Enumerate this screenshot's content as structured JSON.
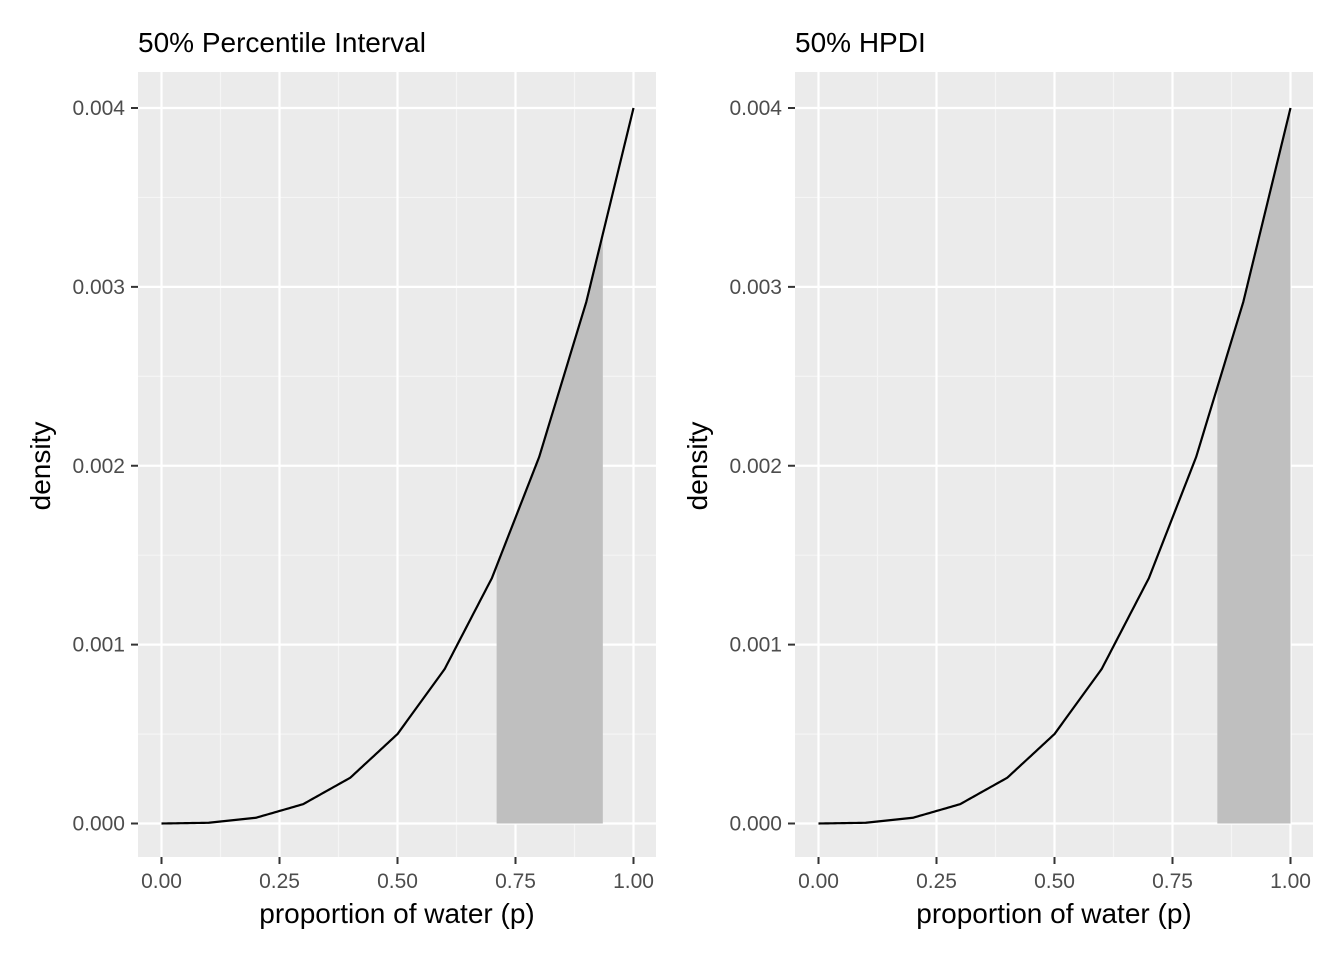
{
  "panels": [
    {
      "title": "50% Percentile Interval",
      "interval_type": "percentile"
    },
    {
      "title": "50% HPDI",
      "interval_type": "hpdi"
    }
  ],
  "chart_data": [
    {
      "type": "area",
      "title": "50% Percentile Interval",
      "xlabel": "proportion of water (p)",
      "ylabel": "density",
      "xlim": [
        0,
        1
      ],
      "ylim": [
        0,
        0.004
      ],
      "x_ticks": [
        0,
        0.25,
        0.5,
        0.75,
        1.0
      ],
      "x_tick_labels": [
        "0.00",
        "0.25",
        "0.50",
        "0.75",
        "1.00"
      ],
      "y_ticks": [
        0,
        0.001,
        0.002,
        0.003,
        0.004
      ],
      "y_tick_labels": [
        "0.000",
        "0.001",
        "0.002",
        "0.003",
        "0.004"
      ],
      "grid": true,
      "series": [
        {
          "x": [
            0,
            0.1,
            0.2,
            0.3,
            0.4,
            0.5,
            0.6,
            0.7,
            0.8,
            0.9,
            1.0
          ],
          "values": [
            0,
            4e-06,
            3.2e-05,
            0.000108,
            0.000256,
            0.0005,
            0.000864,
            0.001372,
            0.002048,
            0.002916,
            0.004
          ]
        }
      ],
      "shaded_interval": [
        0.71,
        0.935
      ]
    },
    {
      "type": "area",
      "title": "50% HPDI",
      "xlabel": "proportion of water (p)",
      "ylabel": "density",
      "xlim": [
        0,
        1
      ],
      "ylim": [
        0,
        0.004
      ],
      "x_ticks": [
        0,
        0.25,
        0.5,
        0.75,
        1.0
      ],
      "x_tick_labels": [
        "0.00",
        "0.25",
        "0.50",
        "0.75",
        "1.00"
      ],
      "y_ticks": [
        0,
        0.001,
        0.002,
        0.003,
        0.004
      ],
      "y_tick_labels": [
        "0.000",
        "0.001",
        "0.002",
        "0.003",
        "0.004"
      ],
      "grid": true,
      "series": [
        {
          "x": [
            0,
            0.1,
            0.2,
            0.3,
            0.4,
            0.5,
            0.6,
            0.7,
            0.8,
            0.9,
            1.0
          ],
          "values": [
            0,
            4e-06,
            3.2e-05,
            0.000108,
            0.000256,
            0.0005,
            0.000864,
            0.001372,
            0.002048,
            0.002916,
            0.004
          ]
        }
      ],
      "shaded_interval": [
        0.845,
        1.0
      ]
    }
  ],
  "colors": {
    "panel_background": "#ebebeb",
    "grid_major": "#ffffff",
    "grid_minor": "#f5f5f5",
    "shade": "#bfbfbf",
    "line": "#000000",
    "tick_text": "#4d4d4d",
    "tick_mark": "#333333"
  }
}
